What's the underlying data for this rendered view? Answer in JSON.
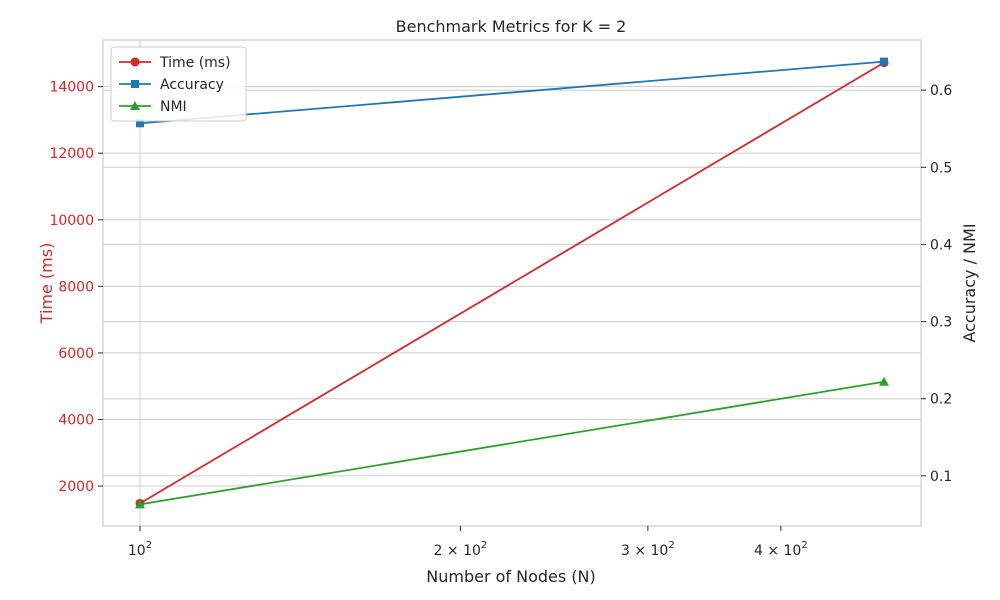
{
  "chart_data": {
    "type": "line",
    "title": "Benchmark Metrics for K = 2",
    "xlabel": "Number of Nodes (N)",
    "ylabel_left": "Time (ms)",
    "ylabel_right": "Accuracy / NMI",
    "x_scale": "log",
    "x": [
      100,
      500
    ],
    "x_ticks": [
      {
        "value": 100,
        "base": "10",
        "exp": "2",
        "coef": ""
      },
      {
        "value": 200,
        "base": "10",
        "exp": "2",
        "coef": "2 × "
      },
      {
        "value": 300,
        "base": "10",
        "exp": "2",
        "coef": "3 × "
      },
      {
        "value": 400,
        "base": "10",
        "exp": "2",
        "coef": "4 × "
      }
    ],
    "ylim_left": [
      800,
      15400
    ],
    "yticks_left": [
      "2000",
      "4000",
      "6000",
      "8000",
      "10000",
      "12000",
      "14000"
    ],
    "ylim_right": [
      0.035,
      0.665
    ],
    "yticks_right": [
      "0.1",
      "0.2",
      "0.3",
      "0.4",
      "0.5",
      "0.6"
    ],
    "grid": true,
    "legend_position": "upper-left",
    "series": [
      {
        "name": "Time (ms)",
        "axis": "left",
        "values": [
          1480,
          14720
        ],
        "color": "#d62728",
        "marker": "circle"
      },
      {
        "name": "Accuracy",
        "axis": "right",
        "values": [
          0.557,
          0.637
        ],
        "color": "#1f77b4",
        "marker": "square"
      },
      {
        "name": "NMI",
        "axis": "right",
        "values": [
          0.063,
          0.222
        ],
        "color": "#2ca02c",
        "marker": "triangle"
      }
    ]
  }
}
